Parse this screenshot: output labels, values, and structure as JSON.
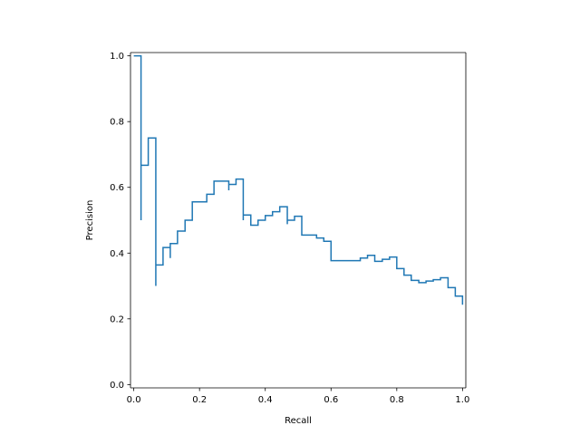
{
  "chart_data": {
    "type": "line",
    "title": "",
    "xlabel": "Recall",
    "ylabel": "Precision",
    "xlim": [
      -0.01,
      1.01
    ],
    "ylim": [
      -0.01,
      1.01
    ],
    "grid": false,
    "step": "post",
    "color": "#1f77b4",
    "x_ticks": [
      {
        "value": 0.0,
        "label": "0.0"
      },
      {
        "value": 0.2,
        "label": "0.2"
      },
      {
        "value": 0.4,
        "label": "0.4"
      },
      {
        "value": 0.6,
        "label": "0.6"
      },
      {
        "value": 0.8,
        "label": "0.8"
      },
      {
        "value": 1.0,
        "label": "1.0"
      }
    ],
    "y_ticks": [
      {
        "value": 0.0,
        "label": "0.0"
      },
      {
        "value": 0.2,
        "label": "0.2"
      },
      {
        "value": 0.4,
        "label": "0.4"
      },
      {
        "value": 0.6,
        "label": "0.6"
      },
      {
        "value": 0.8,
        "label": "0.8"
      },
      {
        "value": 1.0,
        "label": "1.0"
      }
    ],
    "series": [
      {
        "x": [
          0.0,
          0.022,
          0.022,
          0.022,
          0.044,
          0.044,
          0.067,
          0.067,
          0.067,
          0.089,
          0.089,
          0.111,
          0.111,
          0.111,
          0.133,
          0.133,
          0.156,
          0.156,
          0.178,
          0.178,
          0.222,
          0.222,
          0.244,
          0.244,
          0.289,
          0.289,
          0.289,
          0.311,
          0.311,
          0.333,
          0.333,
          0.333,
          0.356,
          0.356,
          0.378,
          0.378,
          0.4,
          0.4,
          0.422,
          0.422,
          0.444,
          0.444,
          0.467,
          0.467,
          0.467,
          0.489,
          0.489,
          0.511,
          0.511,
          0.556,
          0.556,
          0.578,
          0.578,
          0.6,
          0.6,
          0.689,
          0.689,
          0.711,
          0.711,
          0.733,
          0.733,
          0.756,
          0.756,
          0.778,
          0.778,
          0.8,
          0.8,
          0.822,
          0.822,
          0.844,
          0.844,
          0.867,
          0.867,
          0.889,
          0.889,
          0.911,
          0.911,
          0.933,
          0.933,
          0.956,
          0.956,
          0.978,
          0.978,
          1.0,
          1.0
        ],
        "y": [
          1.0,
          1.0,
          0.5,
          0.667,
          0.667,
          0.75,
          0.75,
          0.3,
          0.364,
          0.364,
          0.417,
          0.417,
          0.385,
          0.429,
          0.429,
          0.467,
          0.467,
          0.5,
          0.5,
          0.556,
          0.556,
          0.579,
          0.579,
          0.619,
          0.619,
          0.591,
          0.609,
          0.609,
          0.625,
          0.625,
          0.5,
          0.516,
          0.516,
          0.485,
          0.485,
          0.5,
          0.5,
          0.514,
          0.514,
          0.526,
          0.526,
          0.541,
          0.541,
          0.488,
          0.5,
          0.5,
          0.512,
          0.512,
          0.455,
          0.455,
          0.446,
          0.446,
          0.436,
          0.436,
          0.377,
          0.377,
          0.385,
          0.385,
          0.393,
          0.393,
          0.375,
          0.375,
          0.381,
          0.381,
          0.388,
          0.388,
          0.353,
          0.353,
          0.333,
          0.333,
          0.317,
          0.317,
          0.31,
          0.31,
          0.315,
          0.315,
          0.319,
          0.319,
          0.325,
          0.325,
          0.295,
          0.295,
          0.269,
          0.269,
          0.243
        ]
      }
    ]
  }
}
